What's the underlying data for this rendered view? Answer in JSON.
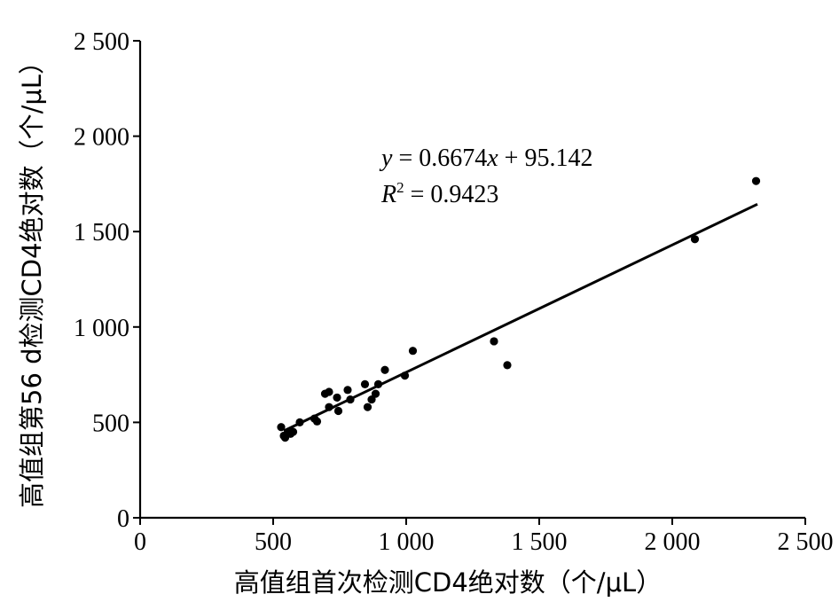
{
  "chart_data": {
    "type": "scatter",
    "xlabel": "高值组首次检测CD4绝对数（个/μL）",
    "ylabel": "高值组第56 d检测CD4绝对数（个/μL）",
    "xlim": [
      0,
      2500
    ],
    "ylim": [
      0,
      2500
    ],
    "xticks": [
      0,
      500,
      1000,
      1500,
      2000,
      2500
    ],
    "yticks": [
      0,
      500,
      1000,
      1500,
      2000,
      2500
    ],
    "xtick_labels": [
      "0",
      "500",
      "1 000",
      "1 500",
      "2 000",
      "2 500"
    ],
    "ytick_labels": [
      "0",
      "500",
      "1 000",
      "1 500",
      "2 000",
      "2 500"
    ],
    "grid": false,
    "points": [
      {
        "x": 530,
        "y": 475
      },
      {
        "x": 540,
        "y": 430
      },
      {
        "x": 545,
        "y": 420
      },
      {
        "x": 555,
        "y": 445
      },
      {
        "x": 565,
        "y": 440
      },
      {
        "x": 575,
        "y": 450
      },
      {
        "x": 600,
        "y": 500
      },
      {
        "x": 655,
        "y": 520
      },
      {
        "x": 665,
        "y": 505
      },
      {
        "x": 695,
        "y": 650
      },
      {
        "x": 710,
        "y": 660
      },
      {
        "x": 710,
        "y": 580
      },
      {
        "x": 740,
        "y": 630
      },
      {
        "x": 745,
        "y": 560
      },
      {
        "x": 780,
        "y": 670
      },
      {
        "x": 790,
        "y": 620
      },
      {
        "x": 845,
        "y": 700
      },
      {
        "x": 855,
        "y": 580
      },
      {
        "x": 870,
        "y": 620
      },
      {
        "x": 885,
        "y": 650
      },
      {
        "x": 895,
        "y": 700
      },
      {
        "x": 920,
        "y": 775
      },
      {
        "x": 995,
        "y": 745
      },
      {
        "x": 1025,
        "y": 875
      },
      {
        "x": 1330,
        "y": 925
      },
      {
        "x": 1380,
        "y": 800
      },
      {
        "x": 2085,
        "y": 1460
      },
      {
        "x": 2315,
        "y": 1765
      }
    ],
    "fit": {
      "slope": 0.6674,
      "intercept": 95.142,
      "x_range": [
        540,
        2320
      ],
      "equation_text": {
        "y": "y",
        "rest": " = 0.6674",
        "x": "x",
        "tail": " + 95.142"
      },
      "r2_text": {
        "r": "R",
        "sup": "2",
        "rest": " = 0.9423"
      }
    }
  }
}
